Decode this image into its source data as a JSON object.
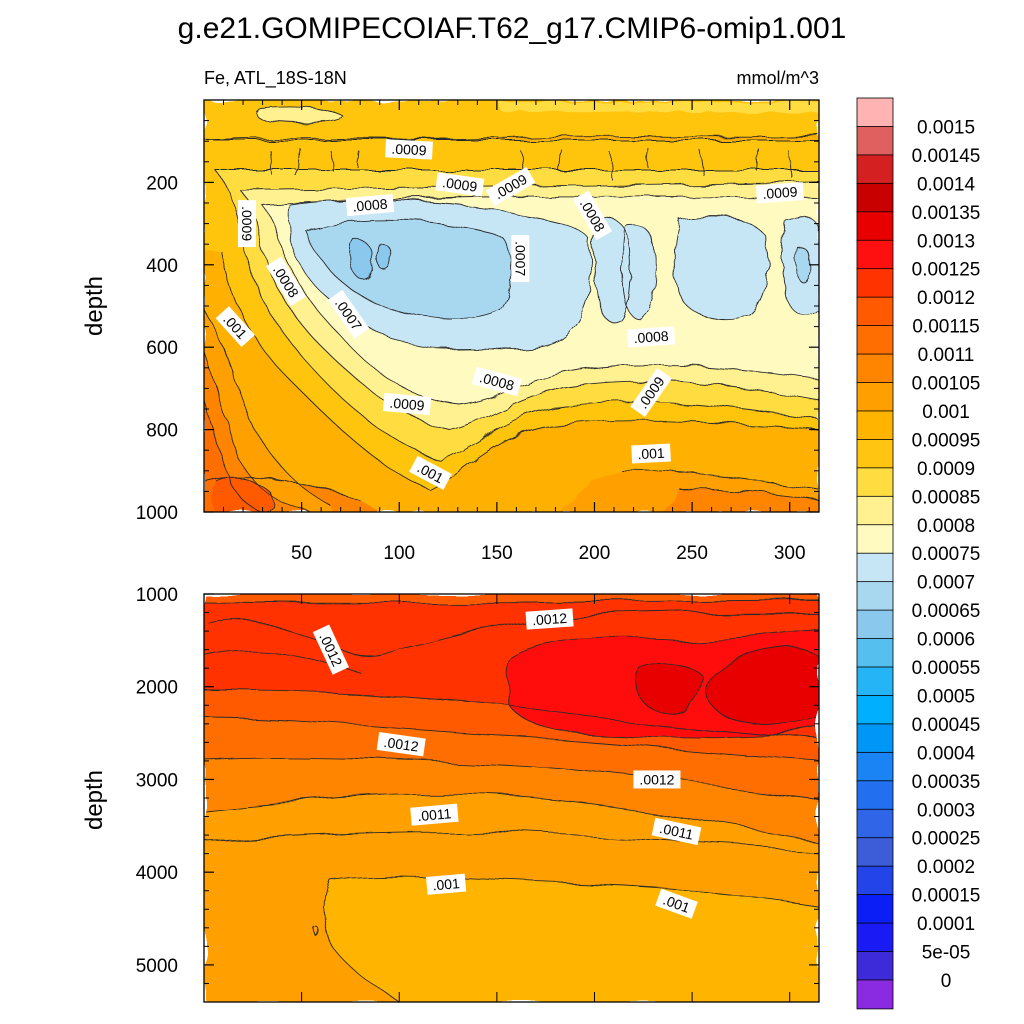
{
  "page": {
    "title": "g.e21.GOMIPECOIAF.T62_g17.CMIP6-omip1.001",
    "subtitle_left": "Fe, ATL_18S-18N",
    "subtitle_right": "mmol/m^3"
  },
  "colors": {
    "plot_border": "#000000",
    "contour_line": "#2a2a2a",
    "label_box": "#ffffff"
  },
  "chart_data": [
    {
      "type": "heatmap",
      "id": "upper",
      "ylabel": "depth",
      "xlabel": "",
      "xlim": [
        0,
        315
      ],
      "ylim": [
        1000,
        0
      ],
      "x_ticks": [
        50,
        100,
        150,
        200,
        250,
        300
      ],
      "x_ticks_minor": [
        10,
        20,
        30,
        40,
        60,
        70,
        80,
        90,
        110,
        120,
        130,
        140,
        160,
        170,
        180,
        190,
        210,
        220,
        230,
        240,
        260,
        270,
        280,
        290,
        310
      ],
      "y_ticks": [
        200,
        400,
        600,
        800,
        1000
      ],
      "y_ticks_minor": [
        0,
        50,
        100,
        150,
        250,
        300,
        350,
        450,
        500,
        550,
        650,
        700,
        750,
        850,
        900,
        950
      ],
      "contour_labels": [
        {
          "text": ".0009",
          "x": 105,
          "y": 120,
          "rot": 3
        },
        {
          "text": ".0009",
          "x": 131,
          "y": 205,
          "rot": 8
        },
        {
          "text": ".0009",
          "x": 157,
          "y": 210,
          "rot": -30
        },
        {
          "text": ".0008",
          "x": 85,
          "y": 255,
          "rot": -5
        },
        {
          "text": ".0008",
          "x": 199,
          "y": 280,
          "rot": 60
        },
        {
          "text": ".0009",
          "x": 295,
          "y": 225,
          "rot": -4
        },
        {
          "text": ".0009",
          "x": 22,
          "y": 300,
          "rot": 90
        },
        {
          "text": ".0007",
          "x": 162,
          "y": 385,
          "rot": 90
        },
        {
          "text": ".0008",
          "x": 42,
          "y": 440,
          "rot": 58
        },
        {
          "text": ".0007",
          "x": 74,
          "y": 520,
          "rot": 55
        },
        {
          "text": ".001",
          "x": 16,
          "y": 550,
          "rot": 48
        },
        {
          "text": ".0008",
          "x": 229,
          "y": 575,
          "rot": -4
        },
        {
          "text": ".0008",
          "x": 150,
          "y": 683,
          "rot": 15
        },
        {
          "text": ".0009",
          "x": 229,
          "y": 710,
          "rot": -55
        },
        {
          "text": ".0009",
          "x": 104,
          "y": 738,
          "rot": 5
        },
        {
          "text": ".001",
          "x": 229,
          "y": 858,
          "rot": -3
        },
        {
          "text": ".001",
          "x": 116,
          "y": 905,
          "rot": 28
        }
      ]
    },
    {
      "type": "heatmap",
      "id": "lower",
      "ylabel": "depth",
      "xlabel": "",
      "xlim": [
        0,
        315
      ],
      "ylim": [
        5400,
        1000
      ],
      "x_ticks_minor": [
        50,
        100,
        150,
        200,
        250,
        300
      ],
      "y_ticks": [
        1000,
        2000,
        3000,
        4000,
        5000
      ],
      "y_ticks_minor": [
        1200,
        1400,
        1600,
        1800,
        2200,
        2400,
        2600,
        2800,
        3200,
        3400,
        3600,
        3800,
        4200,
        4400,
        4600,
        4800,
        5200
      ],
      "contour_labels": [
        {
          "text": ".0012",
          "x": 177,
          "y": 1270,
          "rot": -4
        },
        {
          "text": ".0012",
          "x": 65,
          "y": 1600,
          "rot": 65
        },
        {
          "text": ".0012",
          "x": 101,
          "y": 2620,
          "rot": 8
        },
        {
          "text": ".0012",
          "x": 232,
          "y": 3000,
          "rot": 0
        },
        {
          "text": ".0011",
          "x": 118,
          "y": 3380,
          "rot": -5
        },
        {
          "text": ".0011",
          "x": 242,
          "y": 3560,
          "rot": 12
        },
        {
          "text": ".001",
          "x": 124,
          "y": 4130,
          "rot": -5
        },
        {
          "text": ".001",
          "x": 242,
          "y": 4340,
          "rot": 20
        }
      ]
    }
  ],
  "colorbar": {
    "labels": [
      "0.0015",
      "0.00145",
      "0.0014",
      "0.00135",
      "0.0013",
      "0.00125",
      "0.0012",
      "0.00115",
      "0.0011",
      "0.00105",
      "0.001",
      "0.00095",
      "0.0009",
      "0.00085",
      "0.0008",
      "0.00075",
      "0.0007",
      "0.00065",
      "0.0006",
      "0.00055",
      "0.0005",
      "0.00045",
      "0.0004",
      "0.00035",
      "0.0003",
      "0.00025",
      "0.0002",
      "0.00015",
      "0.0001",
      "5e-05",
      "0"
    ],
    "colors": [
      "#ffb3b3",
      "#e06060",
      "#d42020",
      "#c80000",
      "#e80000",
      "#ff1010",
      "#ff3300",
      "#ff5a00",
      "#ff6e00",
      "#ff8500",
      "#ffa000",
      "#ffb400",
      "#ffc510",
      "#ffdd40",
      "#fff090",
      "#fffac0",
      "#c6e6f6",
      "#a8d8f0",
      "#8ac8ee",
      "#55c0f0",
      "#25b4f5",
      "#00b0ff",
      "#0096f5",
      "#1a84f5",
      "#2270f0",
      "#3065e8",
      "#3d5cd8",
      "#2244e8",
      "#0a1ef5",
      "#1a1af5",
      "#3d2ad8",
      "#8a2be2"
    ]
  }
}
